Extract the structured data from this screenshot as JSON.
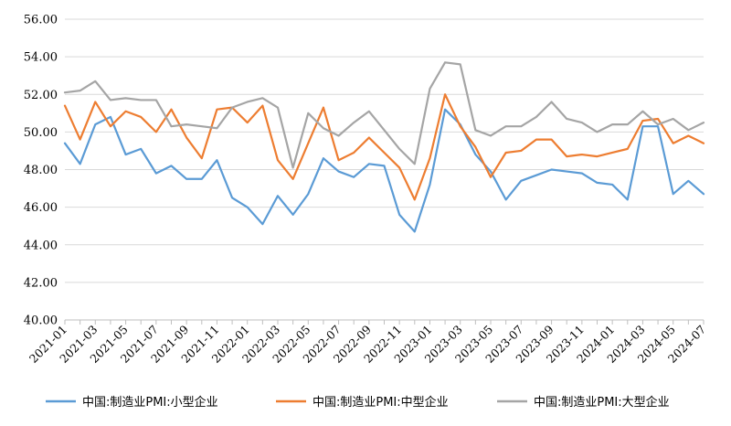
{
  "chart_data": {
    "type": "line",
    "title": "",
    "xlabel": "",
    "ylabel": "",
    "ylim": [
      40,
      56
    ],
    "yticks": [
      "40.00",
      "42.00",
      "44.00",
      "46.00",
      "48.00",
      "50.00",
      "52.00",
      "54.00",
      "56.00"
    ],
    "x": [
      "2021-01",
      "2021-02",
      "2021-03",
      "2021-04",
      "2021-05",
      "2021-06",
      "2021-07",
      "2021-08",
      "2021-09",
      "2021-10",
      "2021-11",
      "2021-12",
      "2022-01",
      "2022-02",
      "2022-03",
      "2022-04",
      "2022-05",
      "2022-06",
      "2022-07",
      "2022-08",
      "2022-09",
      "2022-10",
      "2022-11",
      "2022-12",
      "2023-01",
      "2023-02",
      "2023-03",
      "2023-04",
      "2023-05",
      "2023-06",
      "2023-07",
      "2023-08",
      "2023-09",
      "2023-10",
      "2023-11",
      "2023-12",
      "2024-01",
      "2024-02",
      "2024-03",
      "2024-04",
      "2024-05",
      "2024-06",
      "2024-07"
    ],
    "xtick_labels": [
      "2021-01",
      "2021-03",
      "2021-05",
      "2021-07",
      "2021-09",
      "2021-11",
      "2022-01",
      "2022-03",
      "2022-05",
      "2022-07",
      "2022-09",
      "2022-11",
      "2023-01",
      "2023-03",
      "2023-05",
      "2023-07",
      "2023-09",
      "2023-11",
      "2024-01",
      "2024-03",
      "2024-05",
      "2024-07"
    ],
    "legend_position": "bottom",
    "series": [
      {
        "name": "中国:制造业PMI:小型企业",
        "color": "#5B9BD5",
        "values": [
          49.4,
          48.3,
          50.4,
          50.8,
          48.8,
          49.1,
          47.8,
          48.2,
          47.5,
          47.5,
          48.5,
          46.5,
          46.0,
          45.1,
          46.6,
          45.6,
          46.7,
          48.6,
          47.9,
          47.6,
          48.3,
          48.2,
          45.6,
          44.7,
          47.2,
          51.2,
          50.4,
          48.8,
          47.9,
          46.4,
          47.4,
          47.7,
          48.0,
          47.9,
          47.8,
          47.3,
          47.2,
          46.4,
          50.3,
          50.3,
          46.7,
          47.4,
          46.7
        ]
      },
      {
        "name": "中国:制造业PMI:中型企业",
        "color": "#ED7D31",
        "values": [
          51.4,
          49.6,
          51.6,
          50.3,
          51.1,
          50.8,
          50.0,
          51.2,
          49.7,
          48.6,
          51.2,
          51.3,
          50.5,
          51.4,
          48.5,
          47.5,
          49.4,
          51.3,
          48.5,
          48.9,
          49.7,
          48.9,
          48.1,
          46.4,
          48.6,
          52.0,
          50.3,
          49.2,
          47.6,
          48.9,
          49.0,
          49.6,
          49.6,
          48.7,
          48.8,
          48.7,
          48.9,
          49.1,
          50.6,
          50.7,
          49.4,
          49.8,
          49.4
        ]
      },
      {
        "name": "中国:制造业PMI:大型企业",
        "color": "#A5A5A5",
        "values": [
          52.1,
          52.2,
          52.7,
          51.7,
          51.8,
          51.7,
          51.7,
          50.3,
          50.4,
          50.3,
          50.2,
          51.3,
          51.6,
          51.8,
          51.3,
          48.1,
          51.0,
          50.2,
          49.8,
          50.5,
          51.1,
          50.1,
          49.1,
          48.3,
          52.3,
          53.7,
          53.6,
          50.1,
          49.8,
          50.3,
          50.3,
          50.8,
          51.6,
          50.7,
          50.5,
          50.0,
          50.4,
          50.4,
          51.1,
          50.4,
          50.7,
          50.1,
          50.5
        ]
      }
    ]
  }
}
